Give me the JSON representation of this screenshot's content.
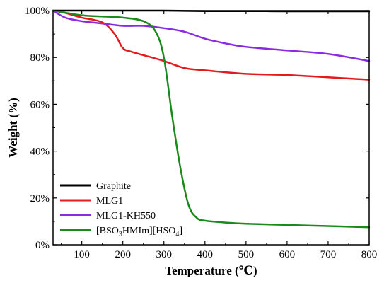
{
  "chart_data": {
    "type": "line",
    "xlabel": "Temperature (℃)",
    "ylabel": "Weight (%)",
    "xlim": [
      30,
      800
    ],
    "ylim": [
      0,
      100
    ],
    "x_ticks": [
      100,
      200,
      300,
      400,
      500,
      600,
      700,
      800
    ],
    "y_ticks": [
      0,
      20,
      40,
      60,
      80,
      100
    ],
    "y_tick_labels": [
      "0%",
      "20%",
      "40%",
      "60%",
      "80%",
      "100%"
    ],
    "grid": false,
    "legend_position": "bottom-left",
    "series": [
      {
        "name": "Graphite",
        "color": "#000000",
        "x": [
          30,
          100,
          200,
          300,
          400,
          500,
          600,
          700,
          800
        ],
        "y": [
          100,
          100,
          100,
          100,
          99.8,
          99.8,
          99.7,
          99.7,
          99.7
        ]
      },
      {
        "name": "MLG1",
        "color": "#e41a1c",
        "x": [
          30,
          60,
          100,
          150,
          180,
          200,
          220,
          250,
          300,
          350,
          400,
          500,
          600,
          700,
          800
        ],
        "y": [
          100,
          99,
          97,
          95,
          90,
          84,
          82.5,
          81,
          78.5,
          75.5,
          74.5,
          73,
          72.5,
          71.5,
          70.5
        ]
      },
      {
        "name": "MLG1-KH550",
        "color": "#8a2be2",
        "x": [
          30,
          60,
          100,
          150,
          200,
          250,
          300,
          350,
          400,
          450,
          500,
          600,
          700,
          800
        ],
        "y": [
          100,
          97,
          95.5,
          94.5,
          93.5,
          93.5,
          92.5,
          91,
          88,
          86,
          84.5,
          83,
          81.5,
          78.5
        ]
      },
      {
        "name": "[BSO3HMIm][HSO4]",
        "name_parts": [
          "[BSO",
          "3",
          "HMIm][HSO",
          "4",
          "]"
        ],
        "color": "#1a8a1a",
        "x": [
          30,
          100,
          150,
          200,
          250,
          280,
          300,
          320,
          340,
          360,
          380,
          400,
          450,
          500,
          600,
          700,
          800
        ],
        "y": [
          100,
          98,
          97.5,
          97,
          95.5,
          91,
          80,
          55,
          33,
          17,
          11.5,
          10.3,
          9.5,
          9,
          8.5,
          8,
          7.5
        ]
      }
    ]
  }
}
